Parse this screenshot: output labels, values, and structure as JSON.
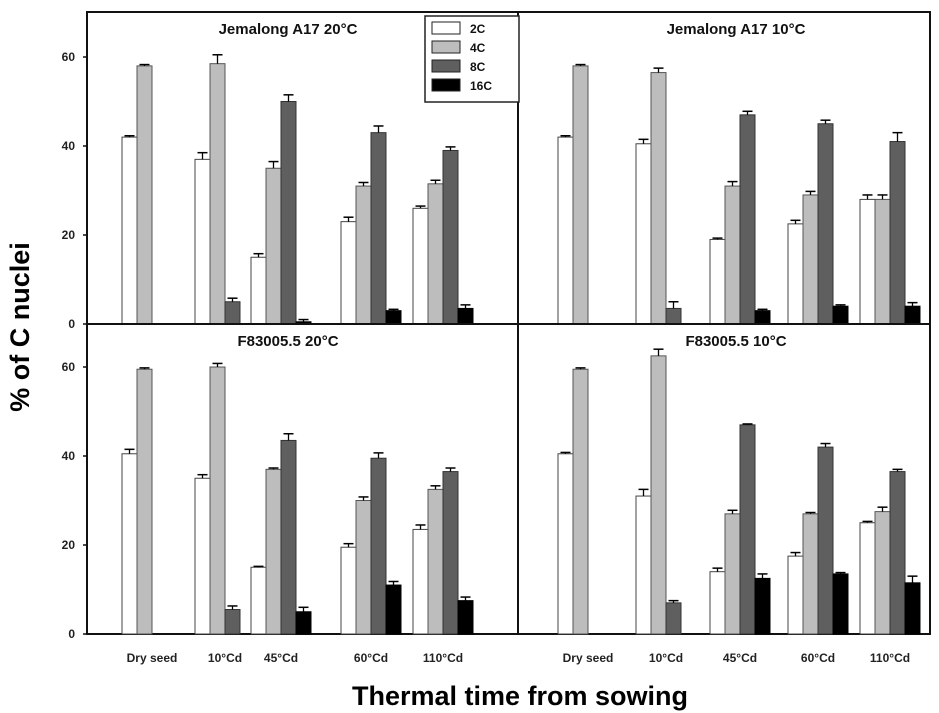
{
  "chart_data": {
    "type": "bar",
    "xlabel": "Thermal time from sowing",
    "ylabel": "% of C nuclei",
    "ylim": [
      0,
      67
    ],
    "yticks": [
      0,
      20,
      40,
      60
    ],
    "grid": false,
    "legend_position": "top-center",
    "categories": [
      "Dry seed",
      "10°Cd",
      "45°Cd",
      "60°Cd",
      "110°Cd"
    ],
    "series_names": [
      "2C",
      "4C",
      "8C",
      "16C"
    ],
    "series_colors": [
      "#ffffff",
      "#bdbdbd",
      "#5f5f5f",
      "#000000"
    ],
    "panels": [
      {
        "title": "Jemalong A17 20°C",
        "series": [
          {
            "name": "2C",
            "values": [
              42,
              37,
              15,
              23,
              26
            ],
            "errors": [
              0.3,
              1.5,
              0.8,
              1.0,
              0.5
            ]
          },
          {
            "name": "4C",
            "values": [
              58,
              58.5,
              35,
              31,
              31.5
            ],
            "errors": [
              0.3,
              2.0,
              1.5,
              0.8,
              0.8
            ]
          },
          {
            "name": "8C",
            "values": [
              0,
              5,
              50,
              43,
              39
            ],
            "errors": [
              0,
              0.8,
              1.5,
              1.5,
              0.8
            ]
          },
          {
            "name": "16C",
            "values": [
              0,
              0,
              0.5,
              3,
              3.5
            ],
            "errors": [
              0,
              0,
              0.5,
              0.3,
              0.8
            ]
          }
        ]
      },
      {
        "title": "Jemalong A17 10°C",
        "series": [
          {
            "name": "2C",
            "values": [
              42,
              40.5,
              19,
              22.5,
              28
            ],
            "errors": [
              0.3,
              1.0,
              0.3,
              0.8,
              1.0
            ]
          },
          {
            "name": "4C",
            "values": [
              58,
              56.5,
              31,
              29,
              28
            ],
            "errors": [
              0.3,
              1.0,
              1.0,
              0.8,
              1.0
            ]
          },
          {
            "name": "8C",
            "values": [
              0,
              3.5,
              47,
              45,
              41
            ],
            "errors": [
              0,
              1.5,
              0.8,
              0.8,
              2.0
            ]
          },
          {
            "name": "16C",
            "values": [
              0,
              0,
              3,
              4,
              4
            ],
            "errors": [
              0,
              0,
              0.3,
              0.3,
              0.8
            ]
          }
        ]
      },
      {
        "title": "F83005.5 20°C",
        "series": [
          {
            "name": "2C",
            "values": [
              40.5,
              35,
              15,
              19.5,
              23.5
            ],
            "errors": [
              1.0,
              0.8,
              0.2,
              0.8,
              1.0
            ]
          },
          {
            "name": "4C",
            "values": [
              59.5,
              60,
              37,
              30,
              32.5
            ],
            "errors": [
              0.3,
              0.8,
              0.3,
              0.8,
              0.8
            ]
          },
          {
            "name": "8C",
            "values": [
              0,
              5.5,
              43.5,
              39.5,
              36.5
            ],
            "errors": [
              0,
              0.8,
              1.5,
              1.2,
              0.8
            ]
          },
          {
            "name": "16C",
            "values": [
              0,
              0,
              5,
              11,
              7.5
            ],
            "errors": [
              0,
              0,
              1.0,
              0.8,
              0.8
            ]
          }
        ]
      },
      {
        "title": "F83005.5 10°C",
        "series": [
          {
            "name": "2C",
            "values": [
              40.5,
              31,
              14,
              17.5,
              25
            ],
            "errors": [
              0.3,
              1.5,
              0.8,
              0.8,
              0.3
            ]
          },
          {
            "name": "4C",
            "values": [
              59.5,
              62.5,
              27,
              27,
              27.5
            ],
            "errors": [
              0.3,
              1.5,
              0.8,
              0.3,
              1.0
            ]
          },
          {
            "name": "8C",
            "values": [
              0,
              7,
              47,
              42,
              36.5
            ],
            "errors": [
              0,
              0.5,
              0.2,
              0.8,
              0.5
            ]
          },
          {
            "name": "16C",
            "values": [
              0,
              0,
              12.5,
              13.5,
              11.5
            ],
            "errors": [
              0,
              0,
              1.0,
              0.3,
              1.5
            ]
          }
        ]
      }
    ]
  }
}
